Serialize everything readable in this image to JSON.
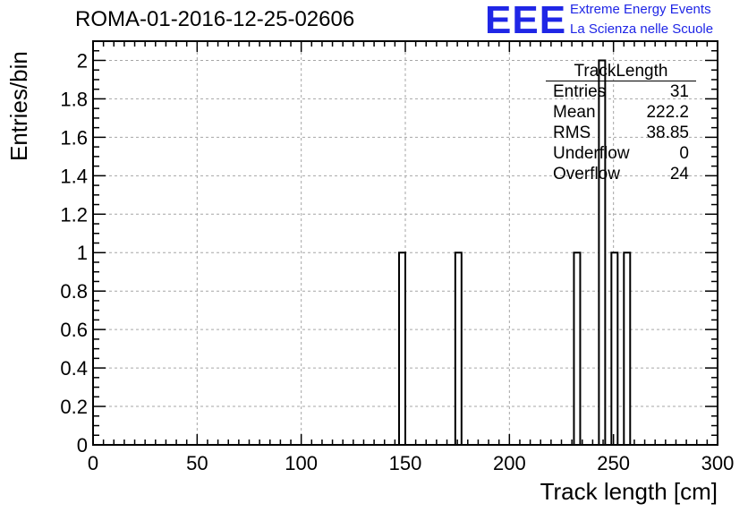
{
  "header": {
    "run_title": "ROMA-01-2016-12-25-02606",
    "logo_text": "EEE",
    "logo_line1": "Extreme Energy Events",
    "logo_line2": "La Scienza nelle Scuole"
  },
  "stats_box": {
    "title": "TrackLength",
    "rows": [
      {
        "label": "Entries",
        "value": "31"
      },
      {
        "label": "Mean",
        "value": "222.2"
      },
      {
        "label": "RMS",
        "value": "38.85"
      },
      {
        "label": "Underflow",
        "value": "0"
      },
      {
        "label": "Overflow",
        "value": "24"
      }
    ]
  },
  "colors": {
    "logo": "#1f26e6",
    "grid": "#a6a6a6",
    "line": "#000000"
  },
  "chart_data": {
    "type": "bar",
    "histogram": true,
    "xlabel": "Track length [cm]",
    "ylabel": "Entries/bin",
    "xlim": [
      0,
      300
    ],
    "ylim": [
      0,
      2.1
    ],
    "grid": true,
    "bin_width": 3,
    "x_ticks": [
      "0",
      "50",
      "100",
      "150",
      "200",
      "250",
      "300"
    ],
    "y_ticks": [
      "0",
      "0.2",
      "0.4",
      "0.6",
      "0.8",
      "1",
      "1.2",
      "1.4",
      "1.6",
      "1.8",
      "2"
    ],
    "bins": [
      {
        "start": 147,
        "end": 150,
        "value": 1
      },
      {
        "start": 174,
        "end": 177,
        "value": 1
      },
      {
        "start": 231,
        "end": 234,
        "value": 1
      },
      {
        "start": 243,
        "end": 246,
        "value": 2
      },
      {
        "start": 249,
        "end": 252,
        "value": 1
      },
      {
        "start": 255,
        "end": 258,
        "value": 1
      }
    ]
  }
}
